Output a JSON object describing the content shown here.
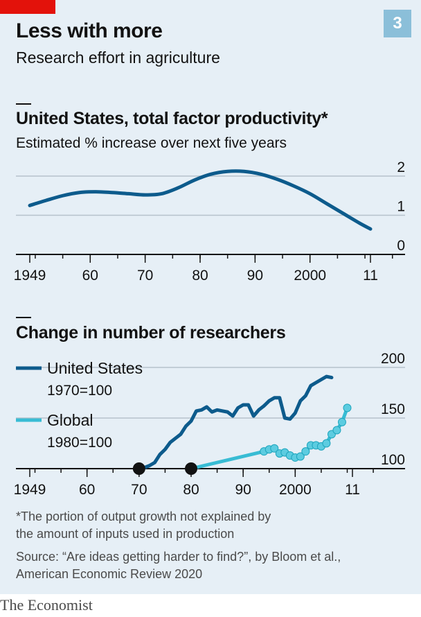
{
  "header": {
    "badge": "3",
    "title": "Less with more",
    "subtitle": "Research effort in agriculture"
  },
  "colors": {
    "us_line": "#0d5b8c",
    "global_line": "#38bcd4",
    "global_marker": "#5ccce0",
    "start_marker": "#121212",
    "grid": "#b6c2cb",
    "background": "#e6eff6"
  },
  "chart_data": [
    {
      "type": "line",
      "title": "United States, total factor productivity*",
      "subtitle": "Estimated % increase over next five years",
      "xlim": [
        1945,
        2016
      ],
      "ylim": [
        0,
        2
      ],
      "x_ticks": [
        1949,
        1960,
        1970,
        1980,
        1990,
        2000,
        2011
      ],
      "x_tick_labels": [
        "1949",
        "60",
        "70",
        "80",
        "90",
        "2000",
        "11"
      ],
      "y_ticks": [
        0,
        1,
        2
      ],
      "y_tick_labels": [
        "0",
        "1",
        "2"
      ],
      "series": [
        {
          "name": "",
          "x": [
            1949,
            1952,
            1955,
            1958,
            1961,
            1964,
            1967,
            1970,
            1973,
            1976,
            1979,
            1982,
            1985,
            1988,
            1991,
            1994,
            1997,
            2000,
            2003,
            2006,
            2009,
            2011
          ],
          "y": [
            1.25,
            1.38,
            1.5,
            1.58,
            1.6,
            1.58,
            1.55,
            1.52,
            1.55,
            1.7,
            1.9,
            2.05,
            2.12,
            2.12,
            2.05,
            1.92,
            1.75,
            1.55,
            1.3,
            1.05,
            0.8,
            0.65
          ]
        }
      ]
    },
    {
      "type": "line",
      "title": "Change in number of researchers",
      "xlim": [
        1945,
        2016
      ],
      "ylim": [
        100,
        200
      ],
      "x_ticks": [
        1949,
        1960,
        1970,
        1980,
        1990,
        2000,
        2011
      ],
      "x_tick_labels": [
        "1949",
        "60",
        "70",
        "80",
        "90",
        "2000",
        "11"
      ],
      "y_ticks": [
        100,
        150,
        200
      ],
      "y_tick_labels": [
        "100",
        "150",
        "200"
      ],
      "legend": "top-left",
      "series": [
        {
          "name": "United States",
          "note": "1970=100",
          "x": [
            1970,
            1971,
            1972,
            1973,
            1974,
            1975,
            1976,
            1977,
            1978,
            1979,
            1980,
            1981,
            1982,
            1983,
            1984,
            1985,
            1986,
            1987,
            1988,
            1989,
            1990,
            1991,
            1992,
            1993,
            1994,
            1995,
            1996,
            1997,
            1998,
            1999,
            2000,
            2001,
            2002,
            2003,
            2004,
            2005,
            2006,
            2007
          ],
          "y": [
            100,
            101,
            103,
            106,
            114,
            119,
            126,
            130,
            134,
            142,
            147,
            157,
            158,
            161,
            156,
            158,
            157,
            156,
            152,
            160,
            163,
            163,
            152,
            158,
            162,
            167,
            170,
            170,
            150,
            149,
            155,
            167,
            172,
            182,
            185,
            188,
            191,
            190
          ]
        },
        {
          "name": "Global",
          "note": "1980=100",
          "x": [
            1980,
            1994,
            1995,
            1996,
            1997,
            1998,
            1999,
            2000,
            2001,
            2002,
            2003,
            2004,
            2005,
            2006,
            2007,
            2008,
            2009,
            2010
          ],
          "y": [
            100,
            117,
            119,
            120,
            115,
            116,
            113,
            111,
            112,
            117,
            123,
            123,
            122,
            125,
            134,
            138,
            146,
            160
          ]
        }
      ]
    }
  ],
  "footnote": {
    "line1": "*The portion of output growth not explained by",
    "line2": "the amount of inputs used in production",
    "source1": "Source: “Are ideas getting harder to find?”, by Bloom et al.,",
    "source2": "American Economic Review 2020"
  },
  "brand": "The Economist"
}
